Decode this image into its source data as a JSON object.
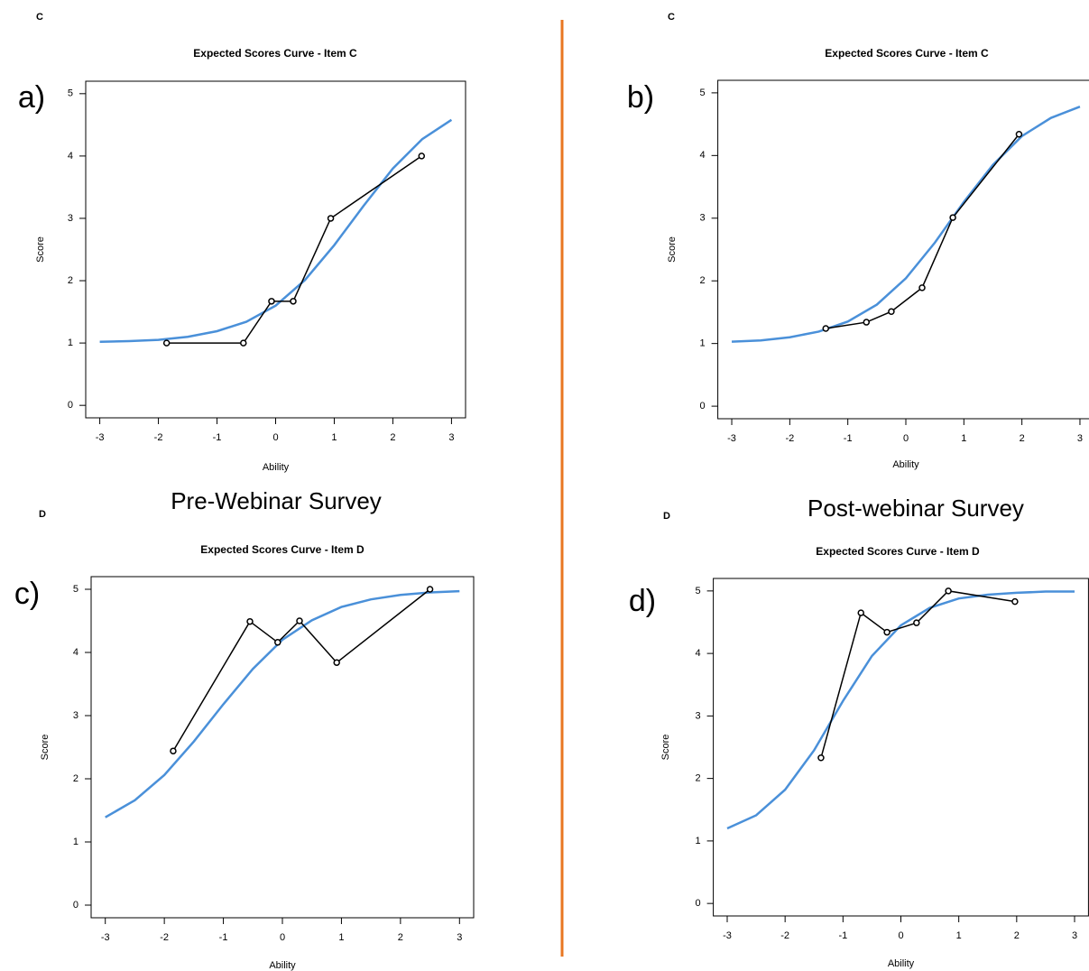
{
  "columns": [
    {
      "heading": "Pre-Webinar Survey"
    },
    {
      "heading": "Post-webinar Survey"
    }
  ],
  "chart_data": [
    {
      "type": "line",
      "item_label": "C",
      "panel_label": "a)",
      "title": "Expected Scores Curve - Item  C",
      "xlabel": "Ability",
      "ylabel": "Score",
      "xlim": [
        -3.24,
        3.24
      ],
      "ylim": [
        -0.2,
        5.2
      ],
      "xticks": [
        -3,
        -2,
        -1,
        0,
        1,
        2,
        3
      ],
      "yticks": [
        0,
        1,
        2,
        3,
        4,
        5
      ],
      "series": [
        {
          "color": "#4a90d9",
          "x": [
            -3,
            -2.5,
            -2,
            -1.5,
            -1,
            -0.5,
            0,
            0.5,
            1,
            1.5,
            2,
            2.5,
            3
          ],
          "values": [
            1.02,
            1.03,
            1.05,
            1.1,
            1.19,
            1.34,
            1.6,
            2.01,
            2.57,
            3.2,
            3.8,
            4.27,
            4.58
          ]
        },
        {
          "color": "#000000",
          "marker": "circle",
          "x": [
            -1.86,
            -0.55,
            -0.07,
            0.3,
            0.94,
            2.49
          ],
          "values": [
            1,
            1,
            1.67,
            1.67,
            3,
            4
          ]
        }
      ]
    },
    {
      "type": "line",
      "item_label": "C",
      "panel_label": "b)",
      "title": "Expected Scores Curve - Item  C",
      "xlabel": "Ability",
      "ylabel": "Score",
      "xlim": [
        -3.24,
        3.24
      ],
      "ylim": [
        -0.2,
        5.2
      ],
      "xticks": [
        -3,
        -2,
        -1,
        0,
        1,
        2,
        3
      ],
      "yticks": [
        0,
        1,
        2,
        3,
        4,
        5
      ],
      "series": [
        {
          "color": "#4a90d9",
          "x": [
            -3,
            -2.5,
            -2,
            -1.5,
            -1,
            -0.5,
            0,
            0.5,
            1,
            1.5,
            2,
            2.5,
            3
          ],
          "values": [
            1.03,
            1.05,
            1.1,
            1.19,
            1.35,
            1.62,
            2.04,
            2.61,
            3.26,
            3.85,
            4.31,
            4.6,
            4.78
          ]
        },
        {
          "color": "#000000",
          "marker": "circle",
          "x": [
            -1.38,
            -0.68,
            -0.25,
            0.28,
            0.81,
            1.95
          ],
          "values": [
            1.24,
            1.34,
            1.51,
            1.89,
            3.01,
            4.34
          ]
        }
      ]
    },
    {
      "type": "line",
      "item_label": "D",
      "panel_label": "c)",
      "title": "Expected Scores Curve - Item  D",
      "xlabel": "Ability",
      "ylabel": "Score",
      "xlim": [
        -3.24,
        3.24
      ],
      "ylim": [
        -0.2,
        5.2
      ],
      "xticks": [
        -3,
        -2,
        -1,
        0,
        1,
        2,
        3
      ],
      "yticks": [
        0,
        1,
        2,
        3,
        4,
        5
      ],
      "series": [
        {
          "color": "#4a90d9",
          "x": [
            -3,
            -2.5,
            -2,
            -1.5,
            -1,
            -0.5,
            0,
            0.5,
            1,
            1.5,
            2,
            2.5,
            3
          ],
          "values": [
            1.39,
            1.66,
            2.06,
            2.59,
            3.18,
            3.74,
            4.2,
            4.51,
            4.72,
            4.84,
            4.91,
            4.95,
            4.97
          ]
        },
        {
          "color": "#000000",
          "marker": "circle",
          "x": [
            -1.85,
            -0.55,
            -0.08,
            0.29,
            0.92,
            2.5
          ],
          "values": [
            2.44,
            4.49,
            4.16,
            4.5,
            3.84,
            5
          ]
        }
      ]
    },
    {
      "type": "line",
      "item_label": "D",
      "panel_label": "d)",
      "title": "Expected Scores Curve - Item  D",
      "xlabel": "Ability",
      "ylabel": "Score",
      "xlim": [
        -3.24,
        3.24
      ],
      "ylim": [
        -0.2,
        5.2
      ],
      "xticks": [
        -3,
        -2,
        -1,
        0,
        1,
        2,
        3
      ],
      "yticks": [
        0,
        1,
        2,
        3,
        4,
        5
      ],
      "series": [
        {
          "color": "#4a90d9",
          "x": [
            -3,
            -2.5,
            -2,
            -1.5,
            -1,
            -0.5,
            0,
            0.5,
            1,
            1.5,
            2,
            2.5,
            3
          ],
          "values": [
            1.2,
            1.41,
            1.82,
            2.45,
            3.24,
            3.96,
            4.45,
            4.73,
            4.88,
            4.94,
            4.97,
            4.99,
            4.99
          ]
        },
        {
          "color": "#000000",
          "marker": "circle",
          "x": [
            -1.38,
            -0.69,
            -0.24,
            0.27,
            0.82,
            1.97
          ],
          "values": [
            2.33,
            4.65,
            4.34,
            4.49,
            5,
            4.83
          ]
        }
      ]
    }
  ]
}
